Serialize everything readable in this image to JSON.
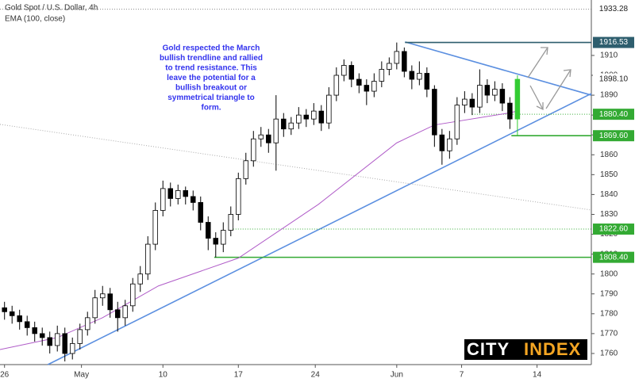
{
  "chart_data": {
    "type": "candlestick",
    "title": "Gold Spot / U.S. Dollar, 4h",
    "subtitle": "EMA (100, close)",
    "annotation": [
      "Gold respected the March",
      "bullish trendline and rallied",
      "to trend resistance. This",
      "leave the potential for a",
      "bullish breakout or",
      "symmetrical triangle to",
      "form."
    ],
    "logo": [
      "CITY",
      "INDEX"
    ],
    "up_color": "#ffffff",
    "down_color": "#000000",
    "edge_color": "#000000",
    "highlight_color": "#33cc33",
    "x": [
      -0.5,
      0,
      0.5,
      1,
      1.5,
      2,
      2.5,
      3,
      3.5,
      4,
      4.5,
      5,
      5.5,
      6,
      6.5,
      7,
      7.5,
      8,
      8.5,
      9,
      9.5,
      10,
      10.5,
      11,
      11.5,
      12,
      12.5,
      13,
      13.5,
      14,
      14.5,
      15,
      15.5,
      16,
      16.5,
      17,
      17.5,
      18,
      18.5,
      19,
      19.5,
      20,
      20.5,
      21,
      21.5,
      22,
      22.5,
      23,
      23.5,
      24,
      24.5,
      25,
      25.5,
      26,
      26.5,
      27,
      27.5,
      28,
      28.5,
      29,
      29.5,
      30,
      30.5,
      31,
      31.5,
      32,
      32.5,
      33,
      33.5
    ],
    "open": [
      1783,
      1781,
      1779,
      1776,
      1773,
      1770,
      1768,
      1764,
      1770,
      1760,
      1765,
      1772,
      1778,
      1788,
      1790,
      1782,
      1778,
      1784,
      1795,
      1800,
      1815,
      1832,
      1843,
      1838,
      1842,
      1839,
      1836,
      1826,
      1818,
      1815,
      1822,
      1830,
      1848,
      1857,
      1868,
      1870,
      1866,
      1878,
      1873,
      1876,
      1880,
      1878,
      1882,
      1876,
      1890,
      1900,
      1905,
      1898,
      1895,
      1892,
      1897,
      1903,
      1906,
      1912,
      1902,
      1898,
      1901,
      1893,
      1870,
      1862,
      1868,
      1885,
      1888,
      1884,
      1895,
      1890,
      1893,
      1886,
      1878
    ],
    "high": [
      1786,
      1784,
      1782,
      1779,
      1776,
      1773,
      1771,
      1774,
      1773,
      1768,
      1775,
      1781,
      1792,
      1794,
      1793,
      1786,
      1787,
      1798,
      1804,
      1819,
      1836,
      1847,
      1846,
      1845,
      1844,
      1842,
      1839,
      1829,
      1821,
      1826,
      1834,
      1851,
      1861,
      1872,
      1874,
      1873,
      1890,
      1881,
      1879,
      1884,
      1883,
      1886,
      1885,
      1894,
      1904,
      1908,
      1907,
      1901,
      1898,
      1901,
      1907,
      1909,
      1916.5,
      1914,
      1905,
      1907,
      1904,
      1895,
      1873,
      1872,
      1889,
      1892,
      1891,
      1903,
      1898,
      1897,
      1896,
      1889,
      1900
    ],
    "low": [
      1777,
      1775,
      1772,
      1769,
      1766,
      1764,
      1760,
      1761,
      1756,
      1757,
      1762,
      1769,
      1775,
      1784,
      1778,
      1771,
      1774,
      1781,
      1791,
      1797,
      1812,
      1829,
      1834,
      1835,
      1835,
      1832,
      1822,
      1812,
      1808.4,
      1811,
      1819,
      1827,
      1845,
      1854,
      1864,
      1861,
      1852,
      1869,
      1870,
      1873,
      1874,
      1875,
      1872,
      1873,
      1887,
      1897,
      1894,
      1891,
      1885,
      1889,
      1894,
      1900,
      1903,
      1899,
      1893,
      1895,
      1889,
      1864,
      1855,
      1858,
      1865,
      1881,
      1880,
      1881,
      1886,
      1887,
      1882,
      1873,
      1869.6
    ],
    "close": [
      1781,
      1779,
      1776,
      1773,
      1770,
      1768,
      1764,
      1770,
      1760,
      1765,
      1772,
      1778,
      1788,
      1790,
      1782,
      1778,
      1784,
      1795,
      1800,
      1815,
      1832,
      1843,
      1838,
      1842,
      1839,
      1836,
      1826,
      1818,
      1815,
      1822,
      1830,
      1848,
      1857,
      1868,
      1870,
      1866,
      1878,
      1873,
      1876,
      1880,
      1878,
      1882,
      1876,
      1890,
      1900,
      1905,
      1898,
      1895,
      1892,
      1897,
      1903,
      1906,
      1912,
      1902,
      1898,
      1901,
      1893,
      1870,
      1862,
      1868,
      1885,
      1888,
      1884,
      1895,
      1890,
      1893,
      1886,
      1878,
      1898
    ],
    "ema": {
      "color": "#b05cc8",
      "x": [
        -0.8,
        3,
        6,
        9.7,
        15,
        20.3,
        25.5,
        28,
        32.9,
        33.5
      ],
      "values": [
        1762,
        1768,
        1778,
        1794,
        1808,
        1835,
        1866,
        1875,
        1881,
        1882
      ]
    },
    "trendlines": [
      {
        "color": "#5b8fe0",
        "x": [
          2.37,
          38.4
        ],
        "y": [
          1754.4,
          1890.8
        ]
      },
      {
        "color": "#5b8fe0",
        "x": [
          26.05,
          38.4
        ],
        "y": [
          1916.8,
          1890.0
        ]
      },
      {
        "color": "#aaaaaa",
        "dashed": true,
        "x": [
          -0.8,
          38.4
        ],
        "y": [
          1875.3,
          1832.2
        ]
      }
    ],
    "levels": [
      {
        "value": 1933.28,
        "from": -0.8,
        "color": "#888888",
        "dashed": true,
        "box": "#ffffff",
        "text_color": "#222222"
      },
      {
        "value": 1916.53,
        "from": 26.05,
        "color": "#2e5e6e",
        "box": "#2e5e6e",
        "text_color": "#ffffff"
      },
      {
        "value": 1898.1,
        "label": "1898.10",
        "box": "#ffffff",
        "text_color": "#222222"
      },
      {
        "value": 1880.4,
        "label": "1880.40",
        "from": 30.5,
        "color": "#33aa33",
        "dashed": true,
        "box": "#33aa33",
        "text_color": "#ffffff"
      },
      {
        "value": 1869.6,
        "label": "1869.60",
        "from": 33.1,
        "color": "#33aa33",
        "box": "#33aa33",
        "text_color": "#ffffff"
      },
      {
        "value": 1822.6,
        "label": "1822.60",
        "from": 14.5,
        "color": "#33aa33",
        "dashed": true,
        "box": "#33aa33",
        "text_color": "#ffffff"
      },
      {
        "value": 1808.4,
        "label": "1808.40",
        "from": 13.4,
        "color": "#33aa33",
        "box": "#33aa33",
        "text_color": "#ffffff"
      }
    ],
    "xlim": [
      -0.8,
      38.4
    ],
    "ylim": [
      1754.4,
      1937.9
    ],
    "yticks": [
      1760,
      1770,
      1780,
      1790,
      1800,
      1810,
      1820,
      1830,
      1840,
      1850,
      1860,
      1870,
      1880,
      1890,
      1900,
      1910
    ],
    "xticks": [
      {
        "value": -0.5,
        "label": "26"
      },
      {
        "value": 4.6,
        "label": "May"
      },
      {
        "value": 10,
        "label": "10"
      },
      {
        "value": 15,
        "label": "17"
      },
      {
        "value": 20.1,
        "label": "24"
      },
      {
        "value": 25.5,
        "label": "Jun"
      },
      {
        "value": 29.8,
        "label": "7"
      },
      {
        "value": 34.8,
        "label": "14"
      }
    ],
    "grid": false
  }
}
